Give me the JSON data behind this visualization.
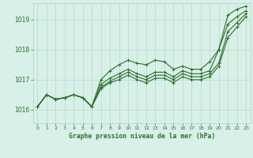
{
  "background_color": "#d8f0e8",
  "grid_color": "#b8d8c8",
  "line_color": "#2d6e2d",
  "marker_color": "#2d6e2d",
  "title": "Graphe pression niveau de la mer (hPa)",
  "xlim": [
    -0.5,
    23.5
  ],
  "ylim": [
    1015.55,
    1019.55
  ],
  "yticks": [
    1016,
    1017,
    1018,
    1019
  ],
  "xticks": [
    0,
    1,
    2,
    3,
    4,
    5,
    6,
    7,
    8,
    9,
    10,
    11,
    12,
    13,
    14,
    15,
    16,
    17,
    18,
    19,
    20,
    21,
    22,
    23
  ],
  "series": [
    [
      1016.1,
      1016.5,
      1016.35,
      1016.4,
      1016.5,
      1016.4,
      1016.1,
      1017.0,
      1017.3,
      1017.5,
      1017.65,
      1017.55,
      1017.5,
      1017.65,
      1017.6,
      1017.35,
      1017.45,
      1017.35,
      1017.35,
      1017.6,
      1018.0,
      1019.15,
      1019.35,
      1019.45
    ],
    [
      1016.1,
      1016.5,
      1016.35,
      1016.4,
      1016.5,
      1016.4,
      1016.1,
      1016.85,
      1017.05,
      1017.2,
      1017.35,
      1017.2,
      1017.1,
      1017.25,
      1017.25,
      1017.1,
      1017.3,
      1017.2,
      1017.2,
      1017.3,
      1018.0,
      1018.85,
      1019.1,
      1019.3
    ],
    [
      1016.1,
      1016.5,
      1016.35,
      1016.4,
      1016.5,
      1016.4,
      1016.1,
      1016.75,
      1016.95,
      1017.1,
      1017.25,
      1017.1,
      1017.0,
      1017.15,
      1017.15,
      1017.0,
      1017.2,
      1017.1,
      1017.1,
      1017.2,
      1017.55,
      1018.6,
      1018.9,
      1019.2
    ],
    [
      1016.1,
      1016.5,
      1016.35,
      1016.4,
      1016.5,
      1016.4,
      1016.1,
      1016.7,
      1016.9,
      1017.0,
      1017.15,
      1017.0,
      1016.9,
      1017.05,
      1017.05,
      1016.9,
      1017.1,
      1017.0,
      1017.0,
      1017.1,
      1017.45,
      1018.4,
      1018.75,
      1019.1
    ]
  ]
}
